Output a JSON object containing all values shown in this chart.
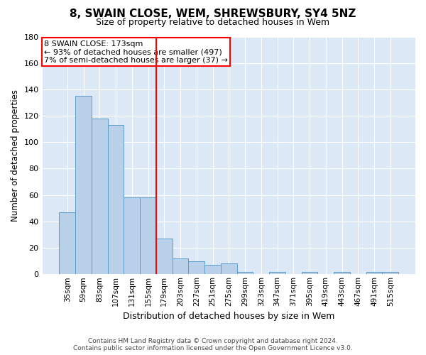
{
  "title": "8, SWAIN CLOSE, WEM, SHREWSBURY, SY4 5NZ",
  "subtitle": "Size of property relative to detached houses in Wem",
  "xlabel": "Distribution of detached houses by size in Wem",
  "ylabel": "Number of detached properties",
  "categories": [
    "35sqm",
    "59sqm",
    "83sqm",
    "107sqm",
    "131sqm",
    "155sqm",
    "179sqm",
    "203sqm",
    "227sqm",
    "251sqm",
    "275sqm",
    "299sqm",
    "323sqm",
    "347sqm",
    "371sqm",
    "395sqm",
    "419sqm",
    "443sqm",
    "467sqm",
    "491sqm",
    "515sqm"
  ],
  "values": [
    47,
    135,
    118,
    113,
    58,
    58,
    27,
    12,
    10,
    7,
    8,
    2,
    0,
    2,
    0,
    2,
    0,
    2,
    0,
    2,
    2
  ],
  "bar_color": "#b8d0e8",
  "bar_edge_color": "#5e9ec9",
  "redline_index": 6,
  "redline_label": "8 SWAIN CLOSE: 173sqm",
  "annotation_line1": "← 93% of detached houses are smaller (497)",
  "annotation_line2": "7% of semi-detached houses are larger (37) →",
  "ylim": [
    0,
    180
  ],
  "yticks": [
    0,
    20,
    40,
    60,
    80,
    100,
    120,
    140,
    160,
    180
  ],
  "bg_color": "#dce8f5",
  "grid_color": "#c8d8e8",
  "footer_line1": "Contains HM Land Registry data © Crown copyright and database right 2024.",
  "footer_line2": "Contains public sector information licensed under the Open Government Licence v3.0."
}
